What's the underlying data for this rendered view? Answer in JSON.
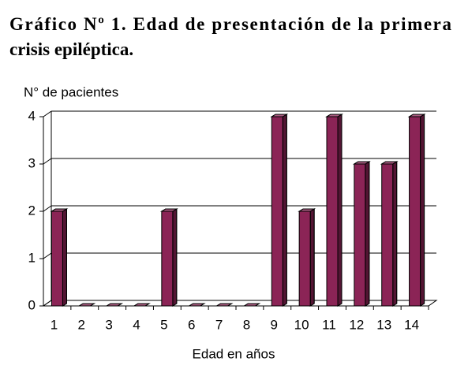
{
  "chart_data": {
    "type": "bar3d",
    "title": [
      "Gráfico Nº 1. Edad de presentación de la primera",
      "crisis epiléptica."
    ],
    "y_label": "N° de pacientes",
    "x_label": "Edad en años",
    "categories": [
      "1",
      "2",
      "3",
      "4",
      "5",
      "6",
      "7",
      "8",
      "9",
      "10",
      "11",
      "12",
      "13",
      "14"
    ],
    "values": [
      2,
      0,
      0,
      0,
      2,
      0,
      0,
      0,
      4,
      2,
      4,
      3,
      3,
      4
    ],
    "color": "#8b2456",
    "ylim": [
      0,
      4
    ],
    "yticks": [
      0,
      1,
      2,
      3,
      4
    ],
    "grid": true
  }
}
